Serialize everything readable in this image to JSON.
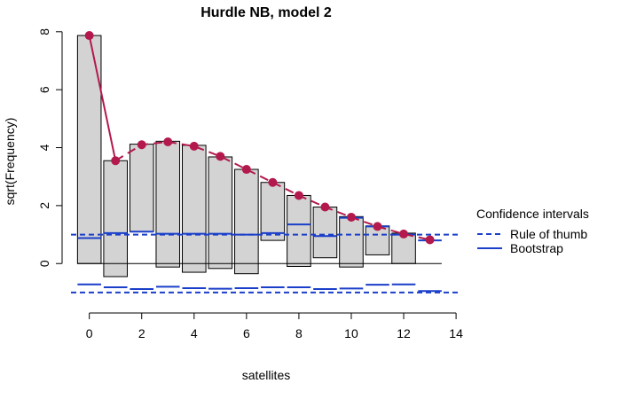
{
  "chart_data": {
    "type": "bar",
    "title": "Hurdle NB, model 2",
    "xlabel": "satellites",
    "ylabel": "sqrt(Frequency)",
    "xlim": [
      -0.7,
      14.2
    ],
    "ylim": [
      -1.4,
      8.3
    ],
    "xticks": [
      "0",
      "2",
      "4",
      "6",
      "8",
      "10",
      "12",
      "14"
    ],
    "yticks": [
      "0",
      "2",
      "4",
      "6",
      "8"
    ],
    "colors": {
      "bar_fill": "#d3d3d3",
      "fitted": "#b3194c",
      "ci": "#1a3fc9"
    },
    "bars": [
      {
        "x": 0,
        "top": 7.87,
        "bottom": 0.0
      },
      {
        "x": 1,
        "top": 3.55,
        "bottom": -0.45
      },
      {
        "x": 2,
        "top": 4.12,
        "bottom": 1.1
      },
      {
        "x": 3,
        "top": 4.22,
        "bottom": -0.12
      },
      {
        "x": 4,
        "top": 4.08,
        "bottom": -0.3
      },
      {
        "x": 5,
        "top": 3.68,
        "bottom": -0.17
      },
      {
        "x": 6,
        "top": 3.25,
        "bottom": -0.35
      },
      {
        "x": 7,
        "top": 2.8,
        "bottom": 0.8
      },
      {
        "x": 8,
        "top": 2.35,
        "bottom": -0.1
      },
      {
        "x": 9,
        "top": 1.95,
        "bottom": 0.2
      },
      {
        "x": 10,
        "top": 1.62,
        "bottom": -0.12
      },
      {
        "x": 11,
        "top": 1.3,
        "bottom": 0.3
      },
      {
        "x": 12,
        "top": 1.05,
        "bottom": 0.0
      }
    ],
    "fitted": {
      "x": [
        0,
        1,
        2,
        3,
        4,
        5,
        6,
        7,
        8,
        9,
        10,
        11,
        12,
        13
      ],
      "y": [
        7.87,
        3.55,
        4.1,
        4.2,
        4.05,
        3.7,
        3.25,
        2.8,
        2.35,
        1.95,
        1.6,
        1.28,
        1.02,
        0.82
      ]
    },
    "ci_rule_of_thumb": [
      1.0,
      -1.0
    ],
    "ci_bootstrap": {
      "x": [
        0,
        1,
        2,
        3,
        4,
        5,
        6,
        7,
        8,
        9,
        10,
        11,
        12,
        13
      ],
      "upper": [
        0.88,
        1.05,
        1.1,
        1.03,
        1.03,
        1.03,
        1.0,
        1.05,
        1.35,
        0.95,
        1.58,
        1.28,
        1.0,
        0.8
      ],
      "lower": [
        -0.72,
        -0.82,
        -0.88,
        -0.8,
        -0.85,
        -0.87,
        -0.85,
        -0.82,
        -0.82,
        -0.88,
        -0.86,
        -0.73,
        -0.72,
        -0.95
      ]
    },
    "legend": {
      "title": "Confidence intervals",
      "placement": "right",
      "entries": [
        {
          "label": "Rule of thumb",
          "style": "dashed"
        },
        {
          "label": "Bootstrap",
          "style": "solid"
        }
      ]
    }
  }
}
